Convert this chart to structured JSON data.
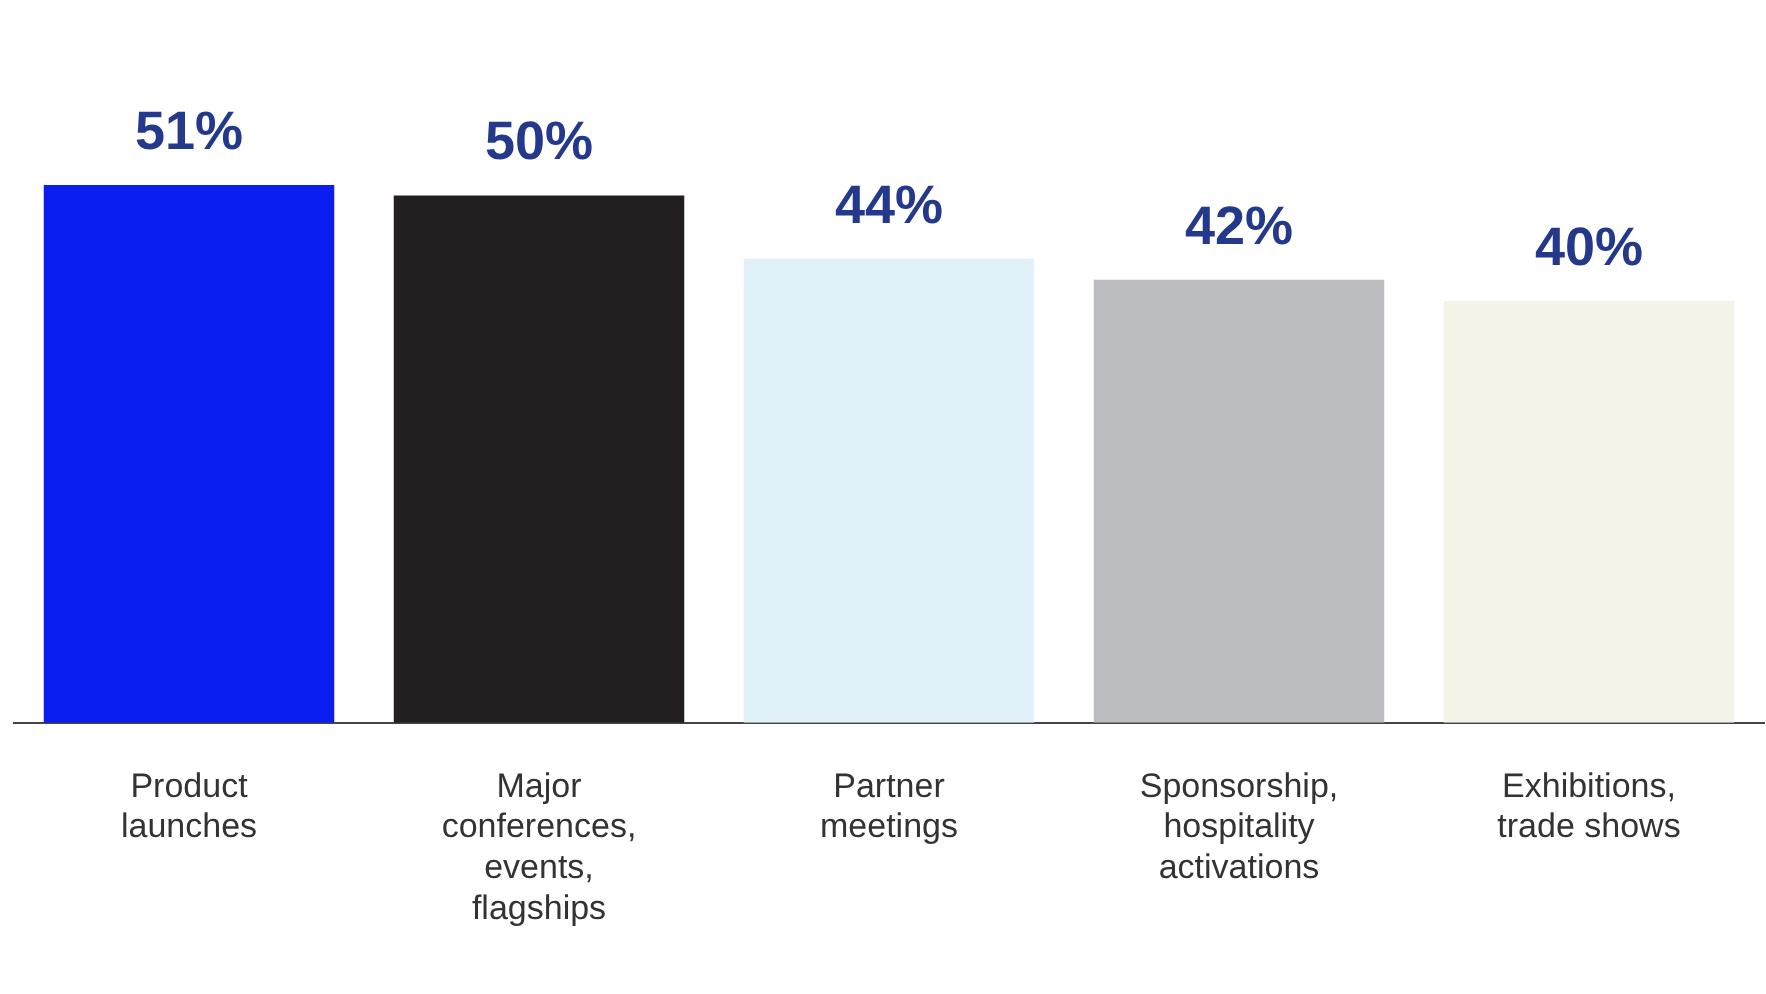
{
  "chart_data": {
    "type": "bar",
    "categories": [
      "Product launches",
      "Major conferences, events, flagships",
      "Partner meetings",
      "Sponsorship, hospitality activations",
      "Exhibitions, trade shows"
    ],
    "values": [
      51,
      50,
      44,
      42,
      40
    ],
    "colors": [
      "#0a1ef2",
      "#231f20",
      "#e1f1f9",
      "#bbbcc0",
      "#f4f3e8"
    ],
    "value_labels": [
      "51%",
      "50%",
      "44%",
      "42%",
      "40%"
    ],
    "grid": false,
    "legend": false
  }
}
